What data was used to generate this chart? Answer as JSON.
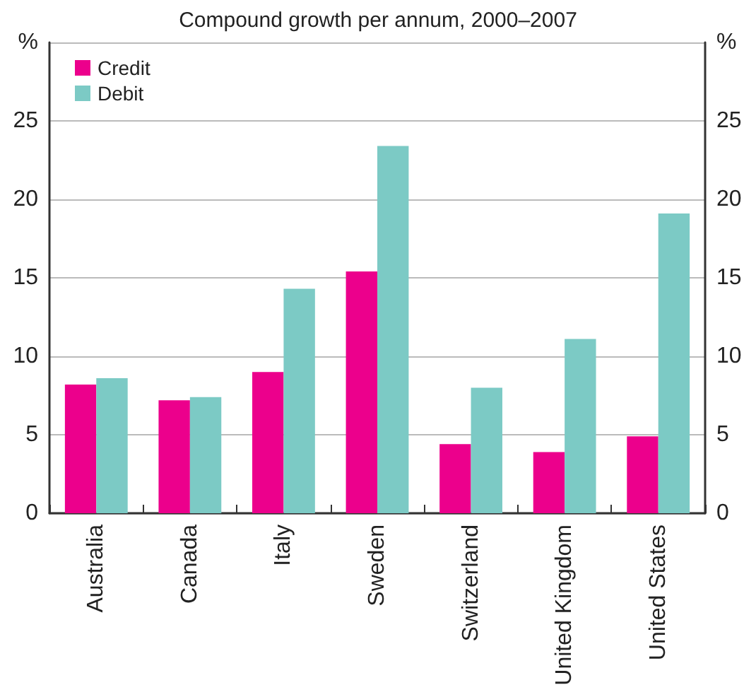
{
  "chart_data": {
    "type": "bar",
    "title": "Compound growth per annum, 2000–2007",
    "categories": [
      "Australia",
      "Canada",
      "Italy",
      "Sweden",
      "Switzerland",
      "United Kingdom",
      "United States"
    ],
    "series": [
      {
        "name": "Credit",
        "color": "#ec008c",
        "values": [
          8.2,
          7.2,
          9.0,
          15.4,
          4.4,
          3.9,
          4.9
        ]
      },
      {
        "name": "Debit",
        "color": "#7ccac5",
        "values": [
          8.6,
          7.4,
          14.3,
          23.4,
          8.0,
          11.1,
          19.1
        ]
      }
    ],
    "ylim": [
      0,
      30
    ],
    "yticks": [
      0,
      5,
      10,
      15,
      20,
      25,
      {
        "value": 30,
        "label": "%"
      }
    ],
    "y2lim": [
      0,
      30
    ],
    "y2ticks": [
      0,
      5,
      10,
      15,
      20,
      25,
      {
        "value": 30,
        "label": "%"
      }
    ],
    "grid": "y",
    "legend": "top left"
  }
}
